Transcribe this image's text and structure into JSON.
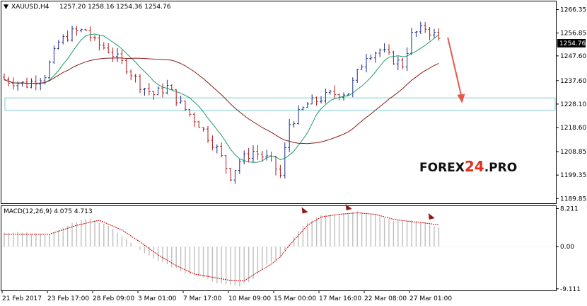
{
  "chart_data": [
    {
      "type": "candlestick",
      "symbol_label": "XAUUSD,H4",
      "ohlc_label": "1257.20 1258.16 1254.36 1254.76",
      "current_price_label": "1254.76",
      "y_ticks": [
        "1266.35",
        "1256.85",
        "1247.60",
        "1237.60",
        "1228.10",
        "1218.60",
        "1208.85",
        "1199.35",
        "1189.85"
      ],
      "y_tick_values": [
        1266.35,
        1256.85,
        1247.6,
        1237.6,
        1228.1,
        1218.6,
        1208.85,
        1199.35,
        1189.85
      ],
      "ylim": [
        1188.5,
        1268.5
      ],
      "x_ticks": [
        "21 Feb 2017",
        "23 Feb 17:00",
        "28 Feb 09:00",
        "3 Mar 01:00",
        "7 Mar 17:00",
        "10 Mar 09:00",
        "15 Mar 00:00",
        "17 Mar 16:00",
        "22 Mar 08:00",
        "27 Mar 01:00"
      ],
      "x_tick_bars": [
        0,
        10,
        20,
        30,
        40,
        50,
        60,
        70,
        80,
        90
      ],
      "bars_count": 97,
      "close_path": [
        [
          0,
          1238
        ],
        [
          5,
          1236
        ],
        [
          9,
          1240
        ],
        [
          12,
          1253
        ],
        [
          15,
          1257
        ],
        [
          18,
          1258
        ],
        [
          20,
          1253
        ],
        [
          23,
          1250
        ],
        [
          27,
          1243
        ],
        [
          30,
          1236
        ],
        [
          33,
          1232
        ],
        [
          36,
          1235
        ],
        [
          39,
          1228
        ],
        [
          43,
          1220
        ],
        [
          47,
          1210
        ],
        [
          50,
          1199
        ],
        [
          52,
          1205
        ],
        [
          55,
          1209
        ],
        [
          59,
          1205
        ],
        [
          61,
          1199
        ],
        [
          63,
          1220
        ],
        [
          67,
          1228
        ],
        [
          72,
          1232
        ],
        [
          76,
          1233
        ],
        [
          80,
          1248
        ],
        [
          83,
          1250
        ],
        [
          86,
          1246
        ],
        [
          88,
          1244
        ],
        [
          90,
          1256
        ],
        [
          93,
          1259
        ],
        [
          96,
          1254.76
        ]
      ],
      "support_zone": [
        1225.6,
        1230.6
      ],
      "forecast_arrow": {
        "from_bar": 98,
        "from_price": 1255,
        "to_bar": 101,
        "to_price": 1229
      },
      "moving_averages": [
        {
          "period": 8,
          "color": "#1e9a6a"
        },
        {
          "period": 28,
          "color": "#8b1a1a"
        }
      ]
    },
    {
      "type": "histogram",
      "indicator_label": "MACD(12,26,9) 4.075 4.713",
      "y_ticks": [
        "8.211",
        "0.00",
        "-9.111"
      ],
      "y_tick_values": [
        8.211,
        0,
        -9.111
      ],
      "ylim": [
        -9.3,
        8.6
      ],
      "macd_path": [
        [
          0,
          3.2
        ],
        [
          10,
          2.6
        ],
        [
          15,
          5.2
        ],
        [
          19,
          6.0
        ],
        [
          23,
          4.6
        ],
        [
          27,
          1.6
        ],
        [
          31,
          -1.5
        ],
        [
          36,
          -3.8
        ],
        [
          40,
          -5.6
        ],
        [
          45,
          -7.1
        ],
        [
          49,
          -8.3
        ],
        [
          52,
          -8.6
        ],
        [
          55,
          -6.9
        ],
        [
          58,
          -3.9
        ],
        [
          61,
          -2.3
        ],
        [
          63,
          0.7
        ],
        [
          66,
          4.6
        ],
        [
          70,
          7.0
        ],
        [
          74,
          6.8
        ],
        [
          78,
          7.8
        ],
        [
          82,
          7.0
        ],
        [
          86,
          5.6
        ],
        [
          90,
          5.6
        ],
        [
          93,
          5.2
        ],
        [
          96,
          4.1
        ]
      ],
      "signal_path": [
        [
          0,
          2.7
        ],
        [
          10,
          2.7
        ],
        [
          16,
          4.6
        ],
        [
          21,
          5.7
        ],
        [
          26,
          3.6
        ],
        [
          30,
          1.0
        ],
        [
          34,
          -1.8
        ],
        [
          38,
          -4.1
        ],
        [
          42,
          -5.9
        ],
        [
          46,
          -6.6
        ],
        [
          50,
          -7.3
        ],
        [
          53,
          -7.4
        ],
        [
          56,
          -5.5
        ],
        [
          59,
          -3.8
        ],
        [
          61,
          -2.2
        ],
        [
          63,
          0.3
        ],
        [
          67,
          4.6
        ],
        [
          70,
          6.4
        ],
        [
          74,
          7.0
        ],
        [
          78,
          7.3
        ],
        [
          82,
          7.0
        ],
        [
          86,
          5.9
        ],
        [
          90,
          5.4
        ],
        [
          93,
          5.1
        ],
        [
          96,
          4.7
        ]
      ],
      "histogram_color": "#bfbfbf",
      "signal_color": "#cc0000",
      "markers": [
        {
          "bar": 66.5,
          "value": 7.6
        },
        {
          "bar": 76.2,
          "value": 8.3
        },
        {
          "bar": 94.5,
          "value": 6.3
        }
      ],
      "marker_color": "#8b1a1a"
    }
  ],
  "colors": {
    "bull": "#1a2a8a",
    "bear": "#b01818",
    "zone": "#7fcfcf",
    "arrow": "#e8584a",
    "current_price_bg": "#000000"
  },
  "watermark": {
    "part1": "FOREX",
    "part2": "24",
    "part3": ".PRO"
  }
}
